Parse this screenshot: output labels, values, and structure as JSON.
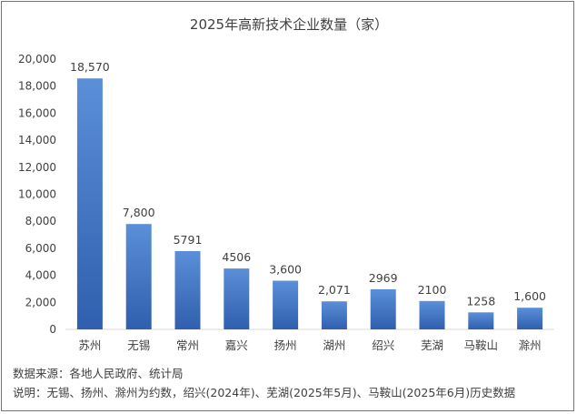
{
  "chart_data": {
    "type": "bar",
    "title": "2025年高新技术企业数量（家）",
    "categories": [
      "苏州",
      "无锡",
      "常州",
      "嘉兴",
      "扬州",
      "湖州",
      "绍兴",
      "芜湖",
      "马鞍山",
      "滁州"
    ],
    "values": [
      18570,
      7800,
      5791,
      4506,
      3600,
      2071,
      2969,
      2100,
      1258,
      1600
    ],
    "data_labels": [
      "18,570",
      "7,800",
      "5791",
      "4506",
      "3,600",
      "2,071",
      "2969",
      "2100",
      "1258",
      "1,600"
    ],
    "ylim": [
      0,
      20000
    ],
    "y_ticks": [
      0,
      2000,
      4000,
      6000,
      8000,
      10000,
      12000,
      14000,
      16000,
      18000,
      20000
    ],
    "y_tick_labels": [
      "0",
      "2,000",
      "4,000",
      "6,000",
      "8,000",
      "10,000",
      "12,000",
      "14,000",
      "16,000",
      "18,000",
      "20,000"
    ],
    "grid": false,
    "xlabel": "",
    "ylabel": "",
    "bar_color_top": "#5b8fd8",
    "bar_color_bottom": "#2f5fae"
  },
  "notes": {
    "source": "数据来源：各地人民政府、统计局",
    "explanation": "说明：无锡、扬州、滁州为约数，绍兴(2024年)、芜湖(2025年5月)、马鞍山(2025年6月)历史数据"
  }
}
